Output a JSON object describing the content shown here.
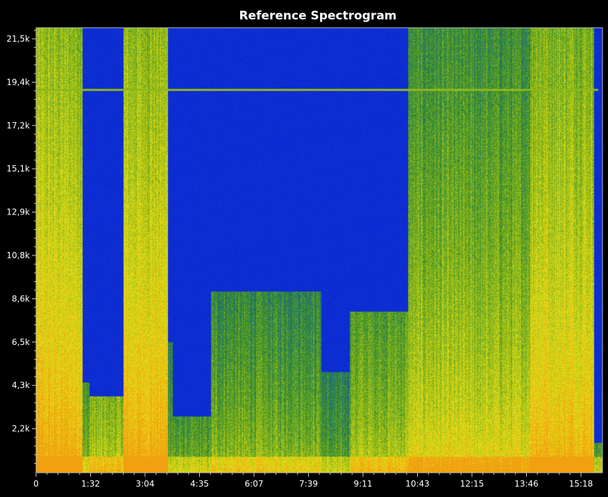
{
  "chart_data": {
    "type": "heatmap",
    "title": "Reference Spectrogram",
    "xlabel": "",
    "ylabel": "",
    "x_ticks": [
      "0",
      "1:32",
      "3:04",
      "4:35",
      "6:07",
      "7:39",
      "9:11",
      "10:43",
      "12:15",
      "13:46",
      "15:18"
    ],
    "y_ticks": [
      "21,5k",
      "19,4k",
      "17,2k",
      "15,1k",
      "12,9k",
      "10,8k",
      "8,6k",
      "6,5k",
      "4,3k",
      "2,2k"
    ],
    "x_range_seconds": [
      0,
      975
    ],
    "y_range_hz": [
      0,
      22050
    ],
    "colormap": [
      "#0a1fe0",
      "#1a5fa0",
      "#2f8a30",
      "#8fb818",
      "#e8e018",
      "#f0a010"
    ],
    "tone_line_hz": 19000,
    "segments": [
      {
        "start": 0,
        "end": 80,
        "cutoff_hz": 22050,
        "intensity": 0.75
      },
      {
        "start": 80,
        "end": 92,
        "cutoff_hz": 4500,
        "intensity": 0.3
      },
      {
        "start": 92,
        "end": 150,
        "cutoff_hz": 3800,
        "intensity": 0.42
      },
      {
        "start": 150,
        "end": 226,
        "cutoff_hz": 22050,
        "intensity": 0.75
      },
      {
        "start": 226,
        "end": 235,
        "cutoff_hz": 6500,
        "intensity": 0.3
      },
      {
        "start": 235,
        "end": 300,
        "cutoff_hz": 2800,
        "intensity": 0.25
      },
      {
        "start": 300,
        "end": 490,
        "cutoff_hz": 9000,
        "intensity": 0.35
      },
      {
        "start": 490,
        "end": 540,
        "cutoff_hz": 5000,
        "intensity": 0.22
      },
      {
        "start": 540,
        "end": 640,
        "cutoff_hz": 8000,
        "intensity": 0.42
      },
      {
        "start": 640,
        "end": 850,
        "cutoff_hz": 22050,
        "intensity": 0.55
      },
      {
        "start": 850,
        "end": 960,
        "cutoff_hz": 22050,
        "intensity": 0.72
      },
      {
        "start": 960,
        "end": 975,
        "cutoff_hz": 1500,
        "intensity": 0.2
      }
    ]
  }
}
